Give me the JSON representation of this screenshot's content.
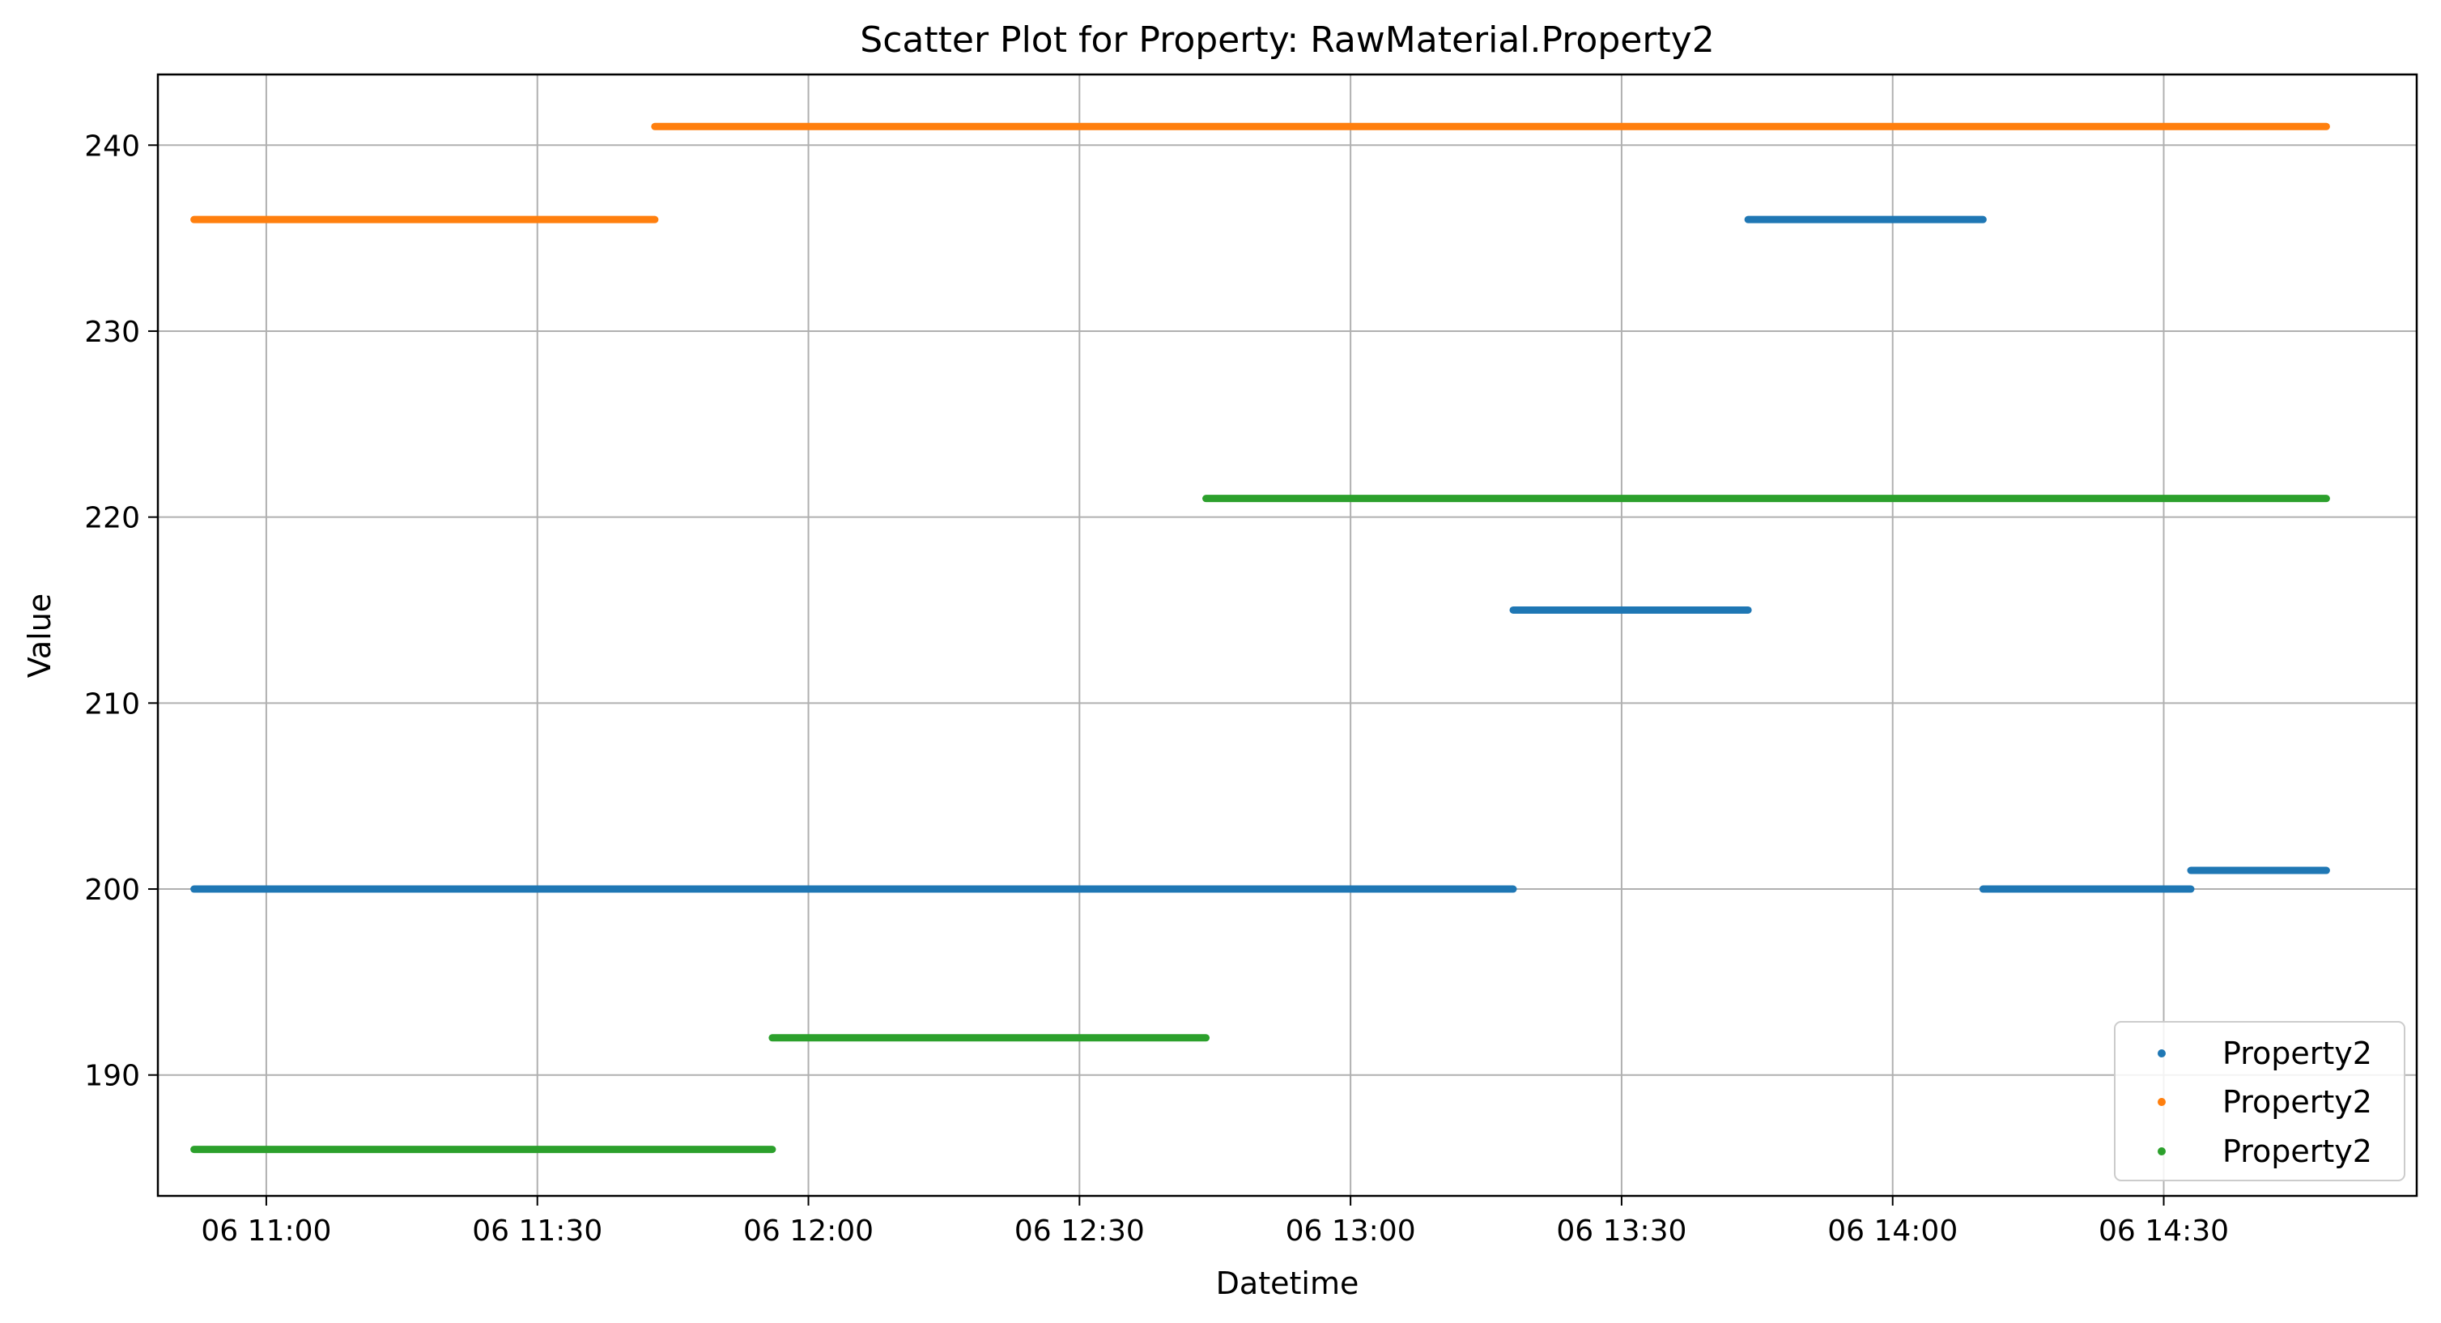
{
  "chart_data": {
    "type": "scatter",
    "title": "Scatter Plot for Property: RawMaterial.Property2",
    "xlabel": "Datetime",
    "ylabel": "Value",
    "x_axis": {
      "kind": "datetime",
      "range": [
        "06 10:48",
        "06 14:58"
      ],
      "tick_values": [
        "06 11:00",
        "06 11:30",
        "06 12:00",
        "06 12:30",
        "06 13:00",
        "06 13:30",
        "06 14:00",
        "06 14:30"
      ],
      "tick_labels": [
        "06 11:00",
        "06 11:30",
        "06 12:00",
        "06 12:30",
        "06 13:00",
        "06 13:30",
        "06 14:00",
        "06 14:30"
      ]
    },
    "y_axis": {
      "range": [
        183.5,
        243.8
      ],
      "ticks": [
        190,
        200,
        210,
        220,
        230,
        240
      ]
    },
    "grid": true,
    "legend": {
      "placement": "lower-right",
      "entries": [
        "Property2",
        "Property2",
        "Property2"
      ]
    },
    "series": [
      {
        "name": "Property2",
        "color": "#1f77b4",
        "segments": [
          {
            "start": "06 10:52",
            "end": "06 13:18",
            "value": 200
          },
          {
            "start": "06 13:18",
            "end": "06 13:44",
            "value": 215
          },
          {
            "start": "06 13:44",
            "end": "06 14:10",
            "value": 236
          },
          {
            "start": "06 14:10",
            "end": "06 14:33",
            "value": 200
          },
          {
            "start": "06 14:33",
            "end": "06 14:48",
            "value": 201
          }
        ]
      },
      {
        "name": "Property2",
        "color": "#ff7f0e",
        "segments": [
          {
            "start": "06 10:52",
            "end": "06 11:43",
            "value": 236
          },
          {
            "start": "06 11:43",
            "end": "06 14:48",
            "value": 241
          }
        ]
      },
      {
        "name": "Property2",
        "color": "#2ca02c",
        "segments": [
          {
            "start": "06 10:52",
            "end": "06 11:56",
            "value": 186
          },
          {
            "start": "06 11:56",
            "end": "06 12:44",
            "value": 192
          },
          {
            "start": "06 12:44",
            "end": "06 14:48",
            "value": 221
          }
        ]
      }
    ]
  }
}
